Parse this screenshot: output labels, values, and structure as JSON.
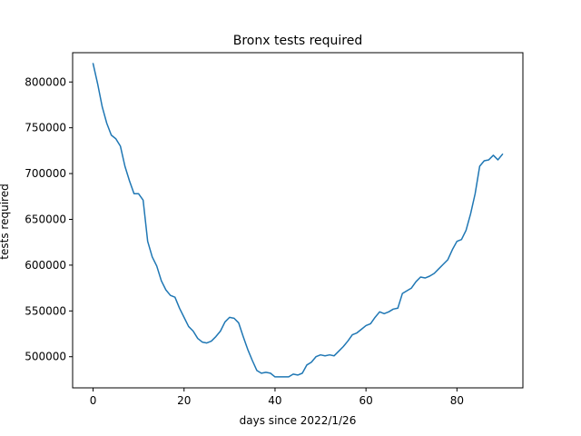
{
  "chart_data": {
    "type": "line",
    "title": "Bronx tests required",
    "xlabel": "days since 2022/1/26",
    "ylabel": "tests required",
    "xlim": [
      -4.5,
      94.5
    ],
    "ylim": [
      466000,
      832000
    ],
    "xticks": [
      0,
      20,
      40,
      60,
      80
    ],
    "xtick_labels": [
      "0",
      "20",
      "40",
      "60",
      "80"
    ],
    "yticks": [
      500000,
      550000,
      600000,
      650000,
      700000,
      750000,
      800000
    ],
    "ytick_labels": [
      "500000",
      "550000",
      "600000",
      "650000",
      "700000",
      "750000",
      "800000"
    ],
    "grid": false,
    "series": [
      {
        "color": "#1f77b4",
        "x": [
          0,
          1,
          2,
          3,
          4,
          5,
          6,
          7,
          8,
          9,
          10,
          11,
          12,
          13,
          14,
          15,
          16,
          17,
          18,
          19,
          20,
          21,
          22,
          23,
          24,
          25,
          26,
          27,
          28,
          29,
          30,
          31,
          32,
          33,
          34,
          35,
          36,
          37,
          38,
          39,
          40,
          41,
          42,
          43,
          44,
          45,
          46,
          47,
          48,
          49,
          50,
          51,
          52,
          53,
          54,
          55,
          56,
          57,
          58,
          59,
          60,
          61,
          62,
          63,
          64,
          65,
          66,
          67,
          68,
          69,
          70,
          71,
          72,
          73,
          74,
          75,
          76,
          77,
          78,
          79,
          80,
          81,
          82,
          83,
          84,
          85,
          86,
          87,
          88,
          89,
          90
        ],
        "values": [
          820000,
          798000,
          773000,
          755000,
          742000,
          738000,
          730000,
          708000,
          692000,
          678000,
          678000,
          671000,
          626000,
          609000,
          599000,
          583000,
          573000,
          567000,
          565000,
          553000,
          543000,
          533000,
          528000,
          520000,
          516000,
          515000,
          517000,
          522000,
          528000,
          538000,
          543000,
          542000,
          537000,
          522000,
          508000,
          496000,
          485000,
          482000,
          483000,
          482000,
          478000,
          478000,
          478000,
          478000,
          481000,
          480000,
          482000,
          491000,
          494000,
          500000,
          502000,
          501000,
          502000,
          501000,
          506000,
          511000,
          517000,
          524000,
          526000,
          530000,
          534000,
          536000,
          543000,
          549000,
          547000,
          549000,
          552000,
          553000,
          569000,
          572000,
          575000,
          582000,
          587000,
          586000,
          588000,
          591000,
          596000,
          601000,
          606000,
          617000,
          626000,
          628000,
          638000,
          656000,
          678000,
          708000,
          714000,
          715000,
          720000,
          715000,
          721000
        ]
      }
    ]
  }
}
